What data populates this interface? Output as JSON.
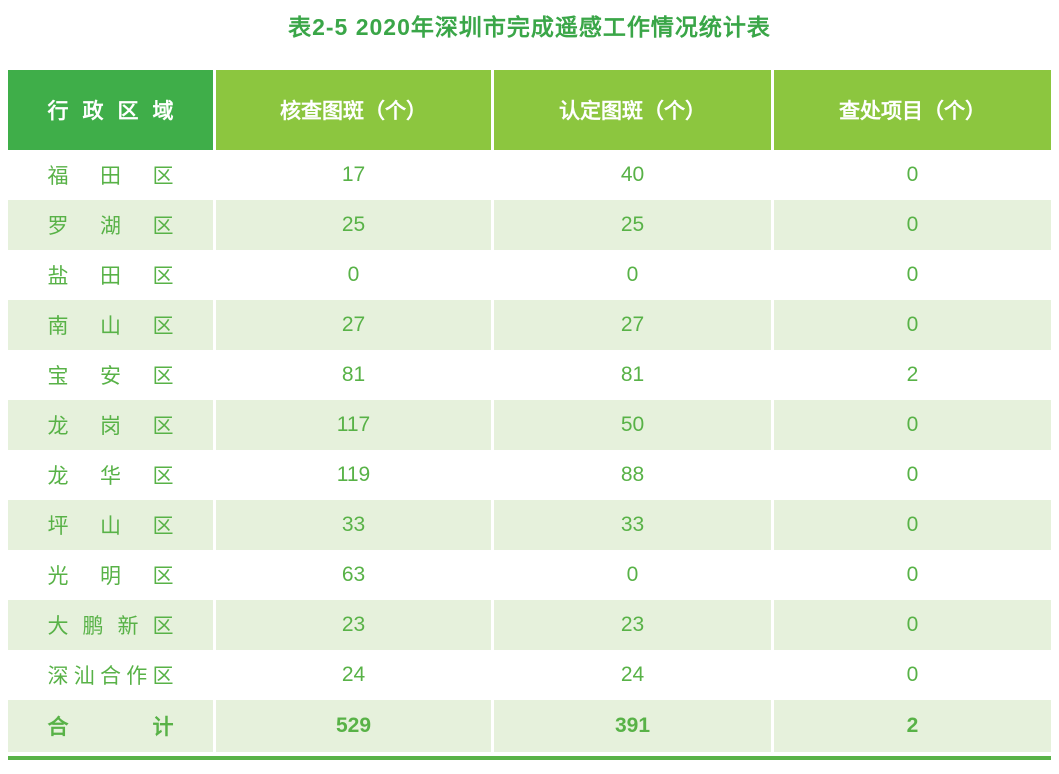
{
  "title": "表2-5 2020年深圳市完成遥感工作情况统计表",
  "table": {
    "columns": [
      "行政区域",
      "核查图斑（个）",
      "认定图斑（个）",
      "查处项目（个）"
    ],
    "rows": [
      {
        "region": "福田区",
        "values": [
          "17",
          "40",
          "0"
        ]
      },
      {
        "region": "罗湖区",
        "values": [
          "25",
          "25",
          "0"
        ]
      },
      {
        "region": "盐田区",
        "values": [
          "0",
          "0",
          "0"
        ]
      },
      {
        "region": "南山区",
        "values": [
          "27",
          "27",
          "0"
        ]
      },
      {
        "region": "宝安区",
        "values": [
          "81",
          "81",
          "2"
        ]
      },
      {
        "region": "龙岗区",
        "values": [
          "117",
          "50",
          "0"
        ]
      },
      {
        "region": "龙华区",
        "values": [
          "119",
          "88",
          "0"
        ]
      },
      {
        "region": "坪山区",
        "values": [
          "33",
          "33",
          "0"
        ]
      },
      {
        "region": "光明区",
        "values": [
          "63",
          "0",
          "0"
        ]
      },
      {
        "region": "大鹏新区",
        "values": [
          "23",
          "23",
          "0"
        ]
      },
      {
        "region": "深汕合作区",
        "values": [
          "24",
          "24",
          "0"
        ]
      }
    ],
    "total": {
      "region": "合计",
      "values": [
        "529",
        "391",
        "2"
      ]
    }
  },
  "colors": {
    "header_first_bg": "#3fae49",
    "header_bg": "#8cc63f",
    "row_tint": "#e6f1dc",
    "text_green": "#58b247",
    "title_green": "#3aa648",
    "bottom_line": "#58b247"
  }
}
